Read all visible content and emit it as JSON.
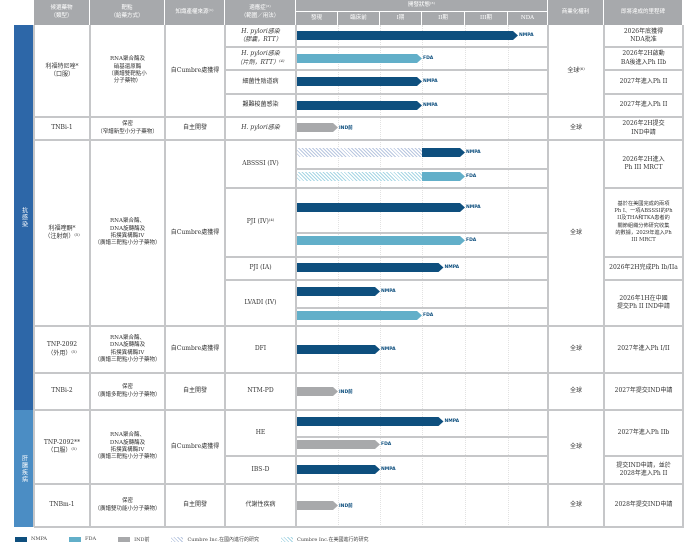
{
  "colors": {
    "nmpa": "#0e4f7e",
    "fda": "#62afc9",
    "ind": "#a8a9ab",
    "header": "#a7a9ac",
    "category1": "#2d67a8",
    "category2": "#4b8dc4"
  },
  "headers": {
    "drug": "候選藥物\n（類型）",
    "target": "靶點\n（給藥方式）",
    "ip": "知識產權來源⁽¹⁾",
    "indication": "適應症⁽²⁾\n（範圍／用法）",
    "status": "開發狀態⁽³⁾",
    "stages": [
      "發現",
      "臨床前",
      "I期",
      "II期",
      "III期",
      "NDA"
    ],
    "rights": "商業化權利",
    "milestone": "即將達成的里程碑"
  },
  "categories": [
    {
      "label": "抗感染"
    },
    {
      "label": "肝腸疾病"
    }
  ],
  "drugs": [
    {
      "name": "利福特尼唑*\n（口服）",
      "target": "RNA聚合酶及\n硝基還原酶\n（廣譜雙靶點小\n分子藥物）",
      "ip": "自Cumbre處獲得",
      "rights": "全球⁽⁶⁾",
      "indications": [
        {
          "name": "H. pylori感染\n（膠囊，RTT）",
          "milestone": "2026年底獲得\nNDA批准",
          "bars": [
            {
              "regulator": "NMPA",
              "progress": 5.25
            }
          ]
        },
        {
          "name": "H. pylori感染\n（片劑，RTT）⁽⁴⁾",
          "milestone": "2026年2H啟動\nBA後進入Ph IIb",
          "bars": [
            {
              "regulator": "FDA",
              "progress": 3
            }
          ]
        },
        {
          "name": "細菌性陰道病",
          "milestone": "2027年進入Ph II",
          "bars": [
            {
              "regulator": "NMPA",
              "progress": 3
            }
          ]
        },
        {
          "name": "艱難梭菌感染",
          "milestone": "2027年進入Ph II",
          "bars": [
            {
              "regulator": "NMPA",
              "progress": 3
            }
          ]
        }
      ]
    },
    {
      "name": "TNBi-1",
      "target": "保密\n（窄譜新型小分子藥物）",
      "ip": "自主開發",
      "rights": "全球",
      "indications": [
        {
          "name": "H. pylori感染",
          "milestone": "2026年2H提交\nIND申請",
          "bars": [
            {
              "regulator": "IND前",
              "progress": 1
            }
          ]
        }
      ]
    },
    {
      "name": "利福喹酮*\n（注射劑）⁽⁵⁾",
      "target": "RNA聚合酶、\nDNA旋轉酶及\n拓撲異構酶IV\n（廣譜三靶點小分子藥物）",
      "ip": "自Cumbre處獲得",
      "rights": "全球",
      "indications": [
        {
          "name": "ABSSSI (IV)",
          "milestone": "2026年2H進入\nPh III MRCT",
          "bars": [
            {
              "regulator": "NMPA",
              "progress": 4,
              "hatched_to": 3
            },
            {
              "regulator": "FDA",
              "progress": 4,
              "hatched_to": 3
            }
          ]
        },
        {
          "name": "PJI (IV)⁽⁴⁾",
          "milestone": "基於在美國完成的兩項\nPh I、一項ABSSSI的Ph\nII及THA和TKA患者的\n關節組織分佈研究收集\n的數據，2029年進入Ph\nIII MRCT",
          "bars": [
            {
              "regulator": "NMPA",
              "progress": 4
            },
            {
              "regulator": "FDA",
              "progress": 4
            }
          ]
        },
        {
          "name": "PJI (IA)",
          "milestone": "2026年2H完成Ph Ib/IIa",
          "bars": [
            {
              "regulator": "NMPA",
              "progress": 3.5
            }
          ]
        },
        {
          "name": "LVADI (IV)",
          "milestone": "2026年1H在中國\n提交Ph II IND申請",
          "bars": [
            {
              "regulator": "NMPA",
              "progress": 2
            },
            {
              "regulator": "FDA",
              "progress": 3
            }
          ]
        }
      ]
    },
    {
      "name": "TNP-2092\n（外用）⁽⁵⁾",
      "target": "RNA聚合酶、\nDNA旋轉酶及\n拓撲異構酶IV\n（廣譜三靶點小分子藥物）",
      "ip": "自Cumbre處獲得",
      "rights": "全球",
      "indications": [
        {
          "name": "DFI",
          "milestone": "2027年進入Ph I/II",
          "bars": [
            {
              "regulator": "NMPA",
              "progress": 2
            }
          ]
        }
      ]
    },
    {
      "name": "TNBi-2",
      "target": "保密\n（廣譜多靶點小分子藥物）",
      "ip": "自主開發",
      "rights": "全球",
      "indications": [
        {
          "name": "NTM-PD",
          "milestone": "2027年提交IND申請",
          "bars": [
            {
              "regulator": "IND前",
              "progress": 1
            }
          ]
        }
      ]
    },
    {
      "name": "TNP-2092**\n（口服）⁽⁵⁾",
      "target": "RNA聚合酶、\nDNA旋轉酶及\n拓撲異構酶IV\n（廣譜三靶點小分子藥物）",
      "ip": "自Cumbre處獲得",
      "rights": "全球",
      "indications": [
        {
          "name": "HE",
          "milestone": "2027年進入Ph IIb",
          "bars": [
            {
              "regulator": "NMPA",
              "progress": 3.5
            },
            {
              "regulator": "FDA",
              "progress": 2,
              "color": "ind"
            }
          ]
        },
        {
          "name": "IBS-D",
          "milestone": "提交IND申請，並於\n2028年進入Ph II",
          "bars": [
            {
              "regulator": "NMPA",
              "progress": 2
            }
          ]
        }
      ]
    },
    {
      "name": "TNBm-1",
      "target": "保密\n（廣譜雙功能小分子藥物）",
      "ip": "自主開發",
      "rights": "全球",
      "indications": [
        {
          "name": "代謝性疾病",
          "milestone": "2028年提交IND申請",
          "bars": [
            {
              "regulator": "IND前",
              "progress": 1
            }
          ]
        }
      ]
    }
  ],
  "legend": [
    {
      "label": "NMPA",
      "style": "nmpa"
    },
    {
      "label": "FDA",
      "style": "fda"
    },
    {
      "label": "IND前",
      "style": "ind"
    },
    {
      "label": "Cumbre Inc.在國內進行的研究",
      "style": "hatch-nmpa"
    },
    {
      "label": "Cumbre Inc.在美國進行的研究",
      "style": "hatch-fda"
    }
  ]
}
